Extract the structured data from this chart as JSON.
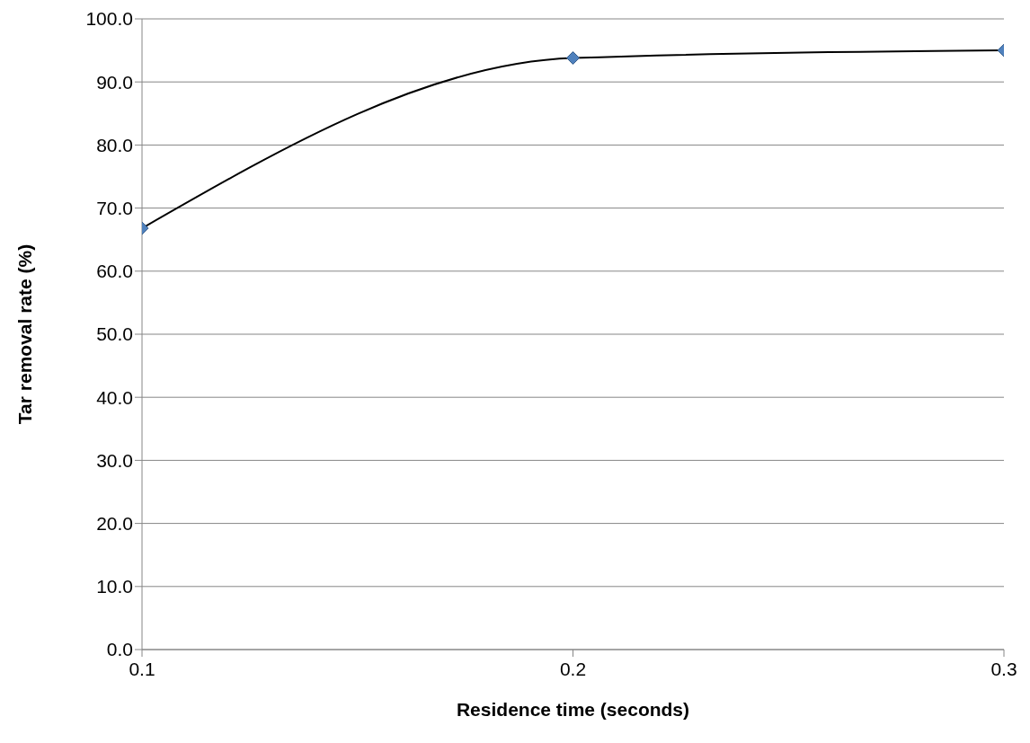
{
  "chart_data": {
    "type": "line",
    "xlabel": "Residence time  (seconds)",
    "ylabel": "Tar removal rate (%)",
    "x": [
      0.1,
      0.2,
      0.3
    ],
    "series": [
      {
        "color": "#000000",
        "colors": [
          "#4f81bd",
          "#4f81bd",
          "#4f81bd"
        ],
        "values": [
          66.8,
          93.8,
          95.0
        ]
      }
    ],
    "xlim": [
      0.1,
      0.3
    ],
    "xticks": [
      0.1,
      0.2,
      0.3
    ],
    "ylim": [
      0,
      100
    ],
    "yticks": [
      {
        "value": 0,
        "label": "0.0"
      },
      {
        "value": 10,
        "label": "10.0"
      },
      {
        "value": 20,
        "label": "20.0"
      },
      {
        "value": 30,
        "label": "30.0"
      },
      {
        "value": 40,
        "label": "40.0"
      },
      {
        "value": 50,
        "label": "50.0"
      },
      {
        "value": 60,
        "label": "60.0"
      },
      {
        "value": 70,
        "label": "70.0"
      },
      {
        "value": 80,
        "label": "80.0"
      },
      {
        "value": 90,
        "label": "90.0"
      },
      {
        "value": 100,
        "label": "100.0"
      }
    ],
    "grid": "y",
    "marker": "diamond",
    "legend": false
  }
}
